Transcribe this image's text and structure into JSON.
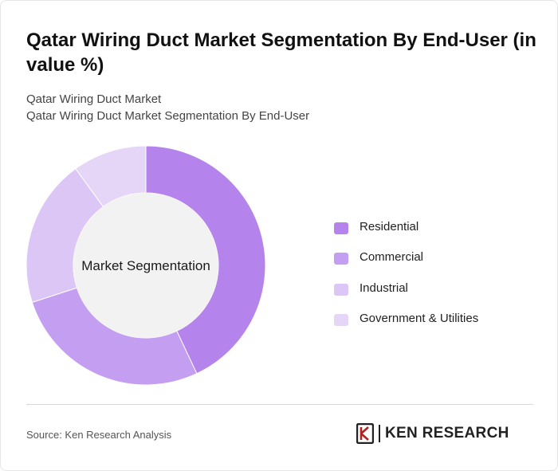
{
  "header": {
    "title": "Qatar Wiring Duct Market Segmentation By End-User (in value %)",
    "subtitle_line1": "Qatar Wiring Duct Market",
    "subtitle_line2": "Qatar Wiring Duct Market Segmentation By End-User"
  },
  "chart_data": {
    "type": "pie",
    "donut": true,
    "center_label": "Market Segmentation",
    "categories": [
      "Residential",
      "Commercial",
      "Industrial",
      "Government & Utilities"
    ],
    "values": [
      43,
      27,
      20,
      10
    ],
    "colors": [
      "#b583ec",
      "#c49ef0",
      "#dcc6f6",
      "#e5d6f8"
    ],
    "legend_position": "right"
  },
  "footer": {
    "source": "Source: Ken Research Analysis",
    "logo_text": "KEN RESEARCH"
  }
}
